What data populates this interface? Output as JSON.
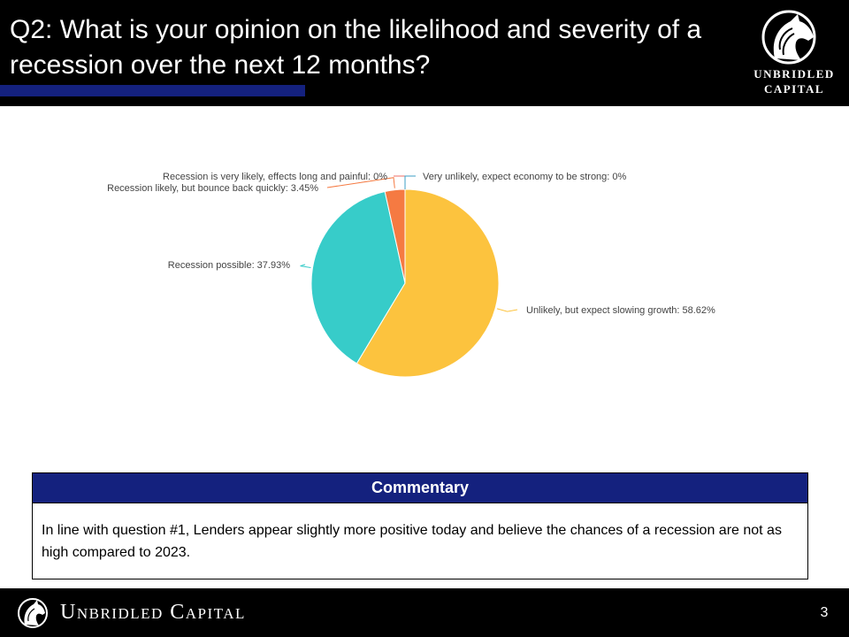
{
  "header": {
    "title": "Q2: What is your opinion on the likelihood and severity of a recession over the next 12 months?",
    "accent_color": "#14217e"
  },
  "logo": {
    "icon": "horse-head-icon",
    "line1": "UNBRIDLED",
    "line2": "CAPITAL"
  },
  "chart_data": {
    "type": "pie",
    "slices": [
      {
        "label": "Unlikely, but expect slowing growth: 58.62%",
        "value": 58.62,
        "color": "#fcc33e"
      },
      {
        "label": "Recession possible: 37.93%",
        "value": 37.93,
        "color": "#37ccc9"
      },
      {
        "label": "Recession likely, but bounce back quickly: 3.45%",
        "value": 3.45,
        "color": "#f57a42"
      },
      {
        "label": "Recession is very likely, effects long and painful: 0%",
        "value": 0,
        "color": "#ef6c66"
      },
      {
        "label": "Very unlikely, expect economy to be strong: 0%",
        "value": 0,
        "color": "#3d9fc4"
      }
    ]
  },
  "commentary": {
    "heading": "Commentary",
    "text": "In line with question #1, Lenders appear slightly more positive today and believe the chances of a recession are not as high compared to 2023."
  },
  "footer": {
    "icon": "horse-head-icon",
    "brand": "Unbridled Capital",
    "page_number": "3"
  }
}
